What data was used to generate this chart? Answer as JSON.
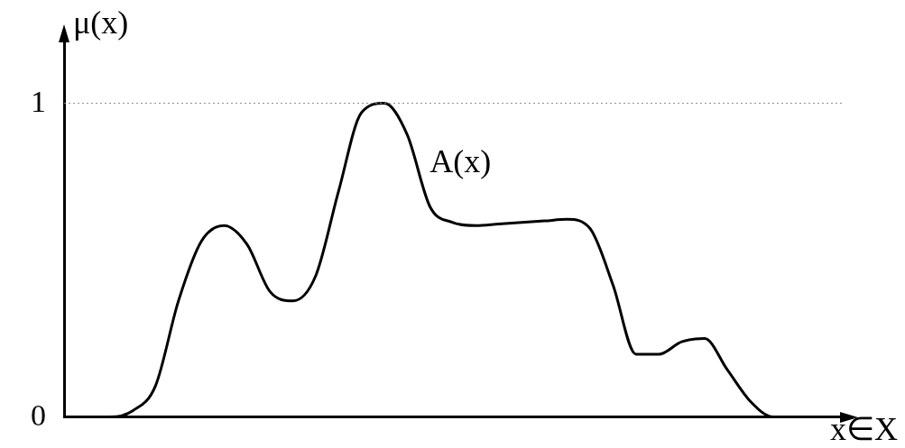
{
  "chart_data": {
    "type": "line",
    "xlabel": "x∈X",
    "ylabel": "μ(x)",
    "categories": [
      null,
      null,
      null,
      null,
      null,
      null,
      null,
      null,
      null,
      null,
      null,
      null,
      null,
      null,
      null,
      null,
      null,
      null,
      null,
      null,
      null,
      null,
      null,
      null,
      null,
      null,
      null,
      null,
      null,
      null,
      null,
      null,
      null,
      null,
      null
    ],
    "series": [
      {
        "color": "#000000",
        "values": [
          null,
          0,
          0,
          0.02,
          0.1,
          0.37,
          0.56,
          0.61,
          0.55,
          0.4,
          0.37,
          0.45,
          0.72,
          0.97,
          1.0,
          0.9,
          0.67,
          0.62,
          0.61,
          0.615,
          0.62,
          0.625,
          0.63,
          0.6,
          0.42,
          0.2,
          0.2,
          0.24,
          0.25,
          0.15,
          0.05,
          0,
          0,
          null,
          null
        ]
      }
    ],
    "ylim": [
      0,
      1.2
    ],
    "yticks": [
      0,
      1
    ],
    "tick_labels": "y",
    "grid": false,
    "legend": false,
    "marker": "none",
    "line_style": "solid",
    "ref_lines": [
      {
        "axis": "y",
        "value": 1,
        "color": "#888888",
        "line_style": "dotted"
      }
    ],
    "annotations": [
      "A(x)"
    ]
  }
}
